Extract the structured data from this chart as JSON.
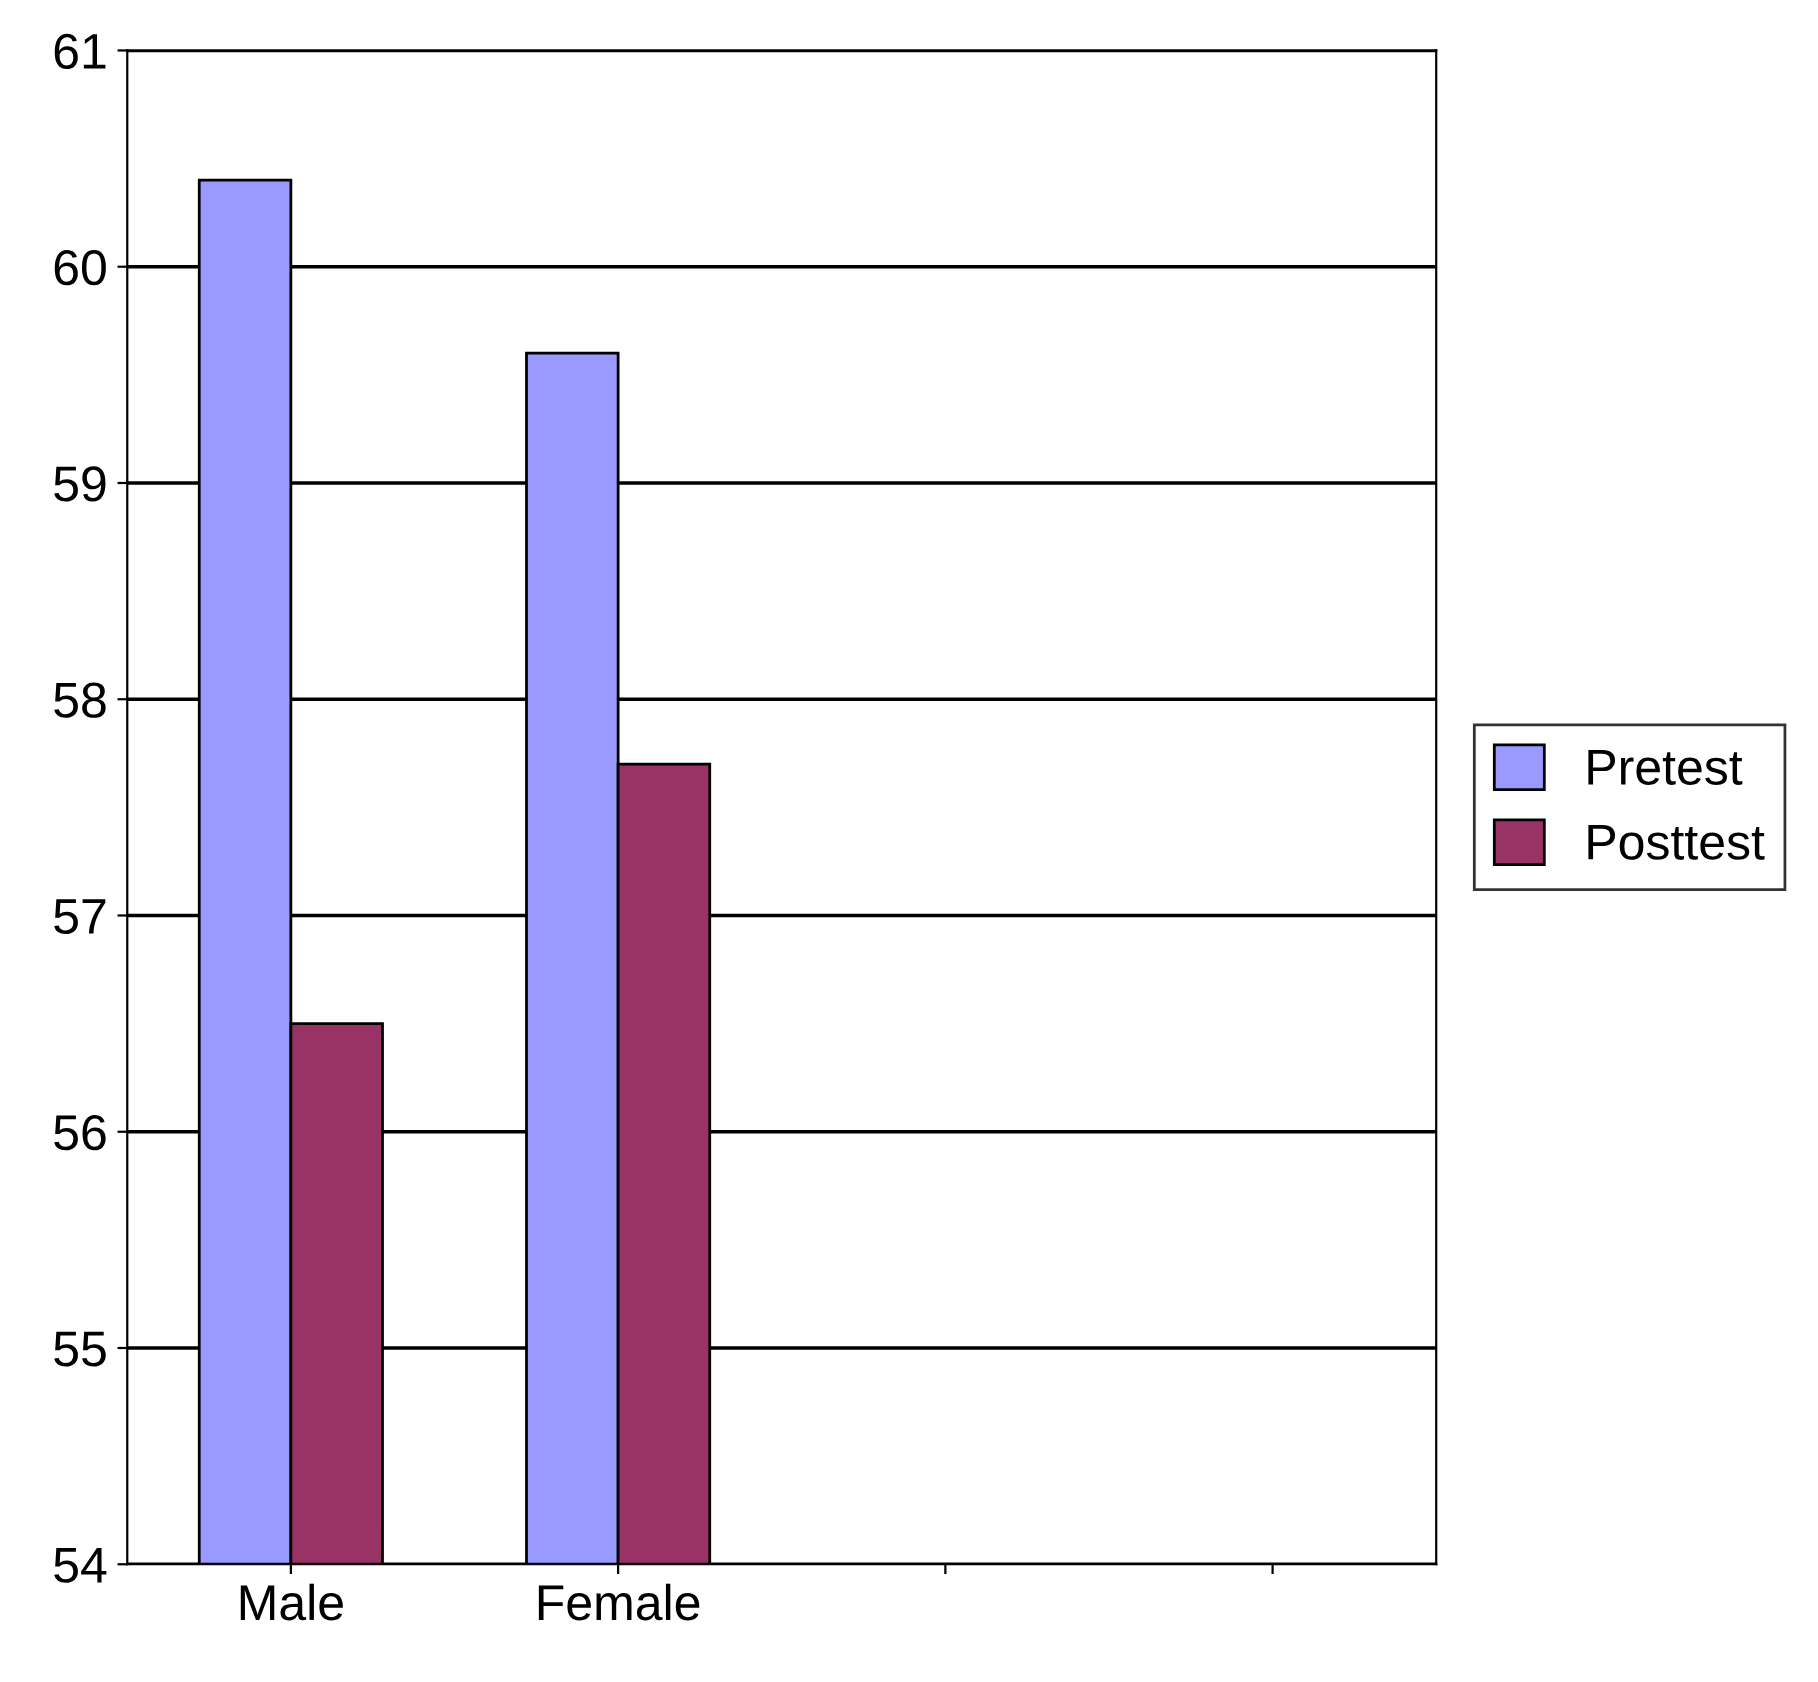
{
  "chart_data": {
    "type": "bar",
    "categories": [
      "Male",
      "Female",
      null,
      null
    ],
    "series": [
      {
        "name": "Pretest",
        "color": "#9999ff",
        "values": [
          60.4,
          59.6,
          null,
          null
        ]
      },
      {
        "name": "Posttest",
        "color": "#993366",
        "values": [
          56.5,
          57.7,
          null,
          null
        ]
      }
    ],
    "ylim": [
      54,
      61
    ],
    "yticks": [
      54,
      55,
      56,
      57,
      58,
      59,
      60,
      61
    ],
    "grid": "y",
    "legend": "right"
  }
}
